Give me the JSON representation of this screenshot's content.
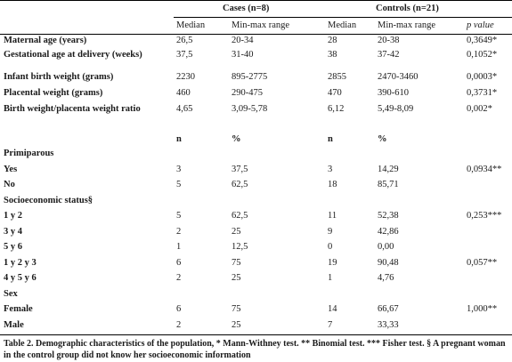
{
  "table": {
    "group_headers": {
      "cases": "Cases (n=8)",
      "controls": "Controls (n=21)"
    },
    "col_headers_1": [
      "Median",
      "Min-max range",
      "Median",
      "Min-max range"
    ],
    "p_header": "p value",
    "continuous_rows": [
      {
        "label": "Maternal age (years)",
        "cases_median": "26,5",
        "cases_range": "20-34",
        "controls_median": "28",
        "controls_range": "20-38",
        "p": "0,3649*"
      },
      {
        "label": "Gestational age at delivery (weeks)",
        "cases_median": "37,5",
        "cases_range": "31-40",
        "controls_median": "38",
        "controls_range": "37-42",
        "p": "0,1052*"
      },
      {
        "label": "Infant birth weight (grams)",
        "cases_median": "2230",
        "cases_range": "895-2775",
        "controls_median": "2855",
        "controls_range": "2470-3460",
        "p": "0,0003*"
      },
      {
        "label": "Placental weight (grams)",
        "cases_median": "460",
        "cases_range": "290-475",
        "controls_median": "470",
        "controls_range": "390-610",
        "p": "0,3731*"
      },
      {
        "label": "Birth weight/placenta weight ratio",
        "cases_median": "4,65",
        "cases_range": "3,09-5,78",
        "controls_median": "6,12",
        "controls_range": "5,49-8,09",
        "p": "0,002*"
      }
    ],
    "col_headers_2": [
      "n",
      "%",
      "n",
      "%"
    ],
    "categorical_rows": [
      {
        "label": "Primiparous",
        "header": true
      },
      {
        "label": "Yes",
        "c_n": "3",
        "c_pct": "37,5",
        "k_n": "3",
        "k_pct": "14,29",
        "p": "0,0934**"
      },
      {
        "label": "No",
        "c_n": "5",
        "c_pct": "62,5",
        "k_n": "18",
        "k_pct": "85,71",
        "p": ""
      },
      {
        "label": "Socioeconomic status§",
        "header": true
      },
      {
        "label": "1 y 2",
        "c_n": "5",
        "c_pct": "62,5",
        "k_n": "11",
        "k_pct": "52,38",
        "p": "0,253***"
      },
      {
        "label": "3 y 4",
        "c_n": "2",
        "c_pct": "25",
        "k_n": "9",
        "k_pct": "42,86",
        "p": ""
      },
      {
        "label": "5 y 6",
        "c_n": "1",
        "c_pct": "12,5",
        "k_n": "0",
        "k_pct": "0,00",
        "p": ""
      },
      {
        "label": "1 y 2 y 3",
        "c_n": "6",
        "c_pct": "75",
        "k_n": "19",
        "k_pct": "90,48",
        "p": "0,057**"
      },
      {
        "label": "4 y 5 y 6",
        "c_n": "2",
        "c_pct": "25",
        "k_n": "1",
        "k_pct": "4,76",
        "p": ""
      },
      {
        "label": "Sex",
        "header": true
      },
      {
        "label": "Female",
        "c_n": "6",
        "c_pct": "75",
        "k_n": "14",
        "k_pct": "66,67",
        "p": "1,000**"
      },
      {
        "label": "Male",
        "c_n": "2",
        "c_pct": "25",
        "k_n": "7",
        "k_pct": "33,33",
        "p": ""
      }
    ],
    "caption": "Table 2. Demographic characteristics of the population, * Mann-Withney test. ** Binomial test. *** Fisher test. § A pregnant woman in the control group did not know her socioeconomic information"
  }
}
